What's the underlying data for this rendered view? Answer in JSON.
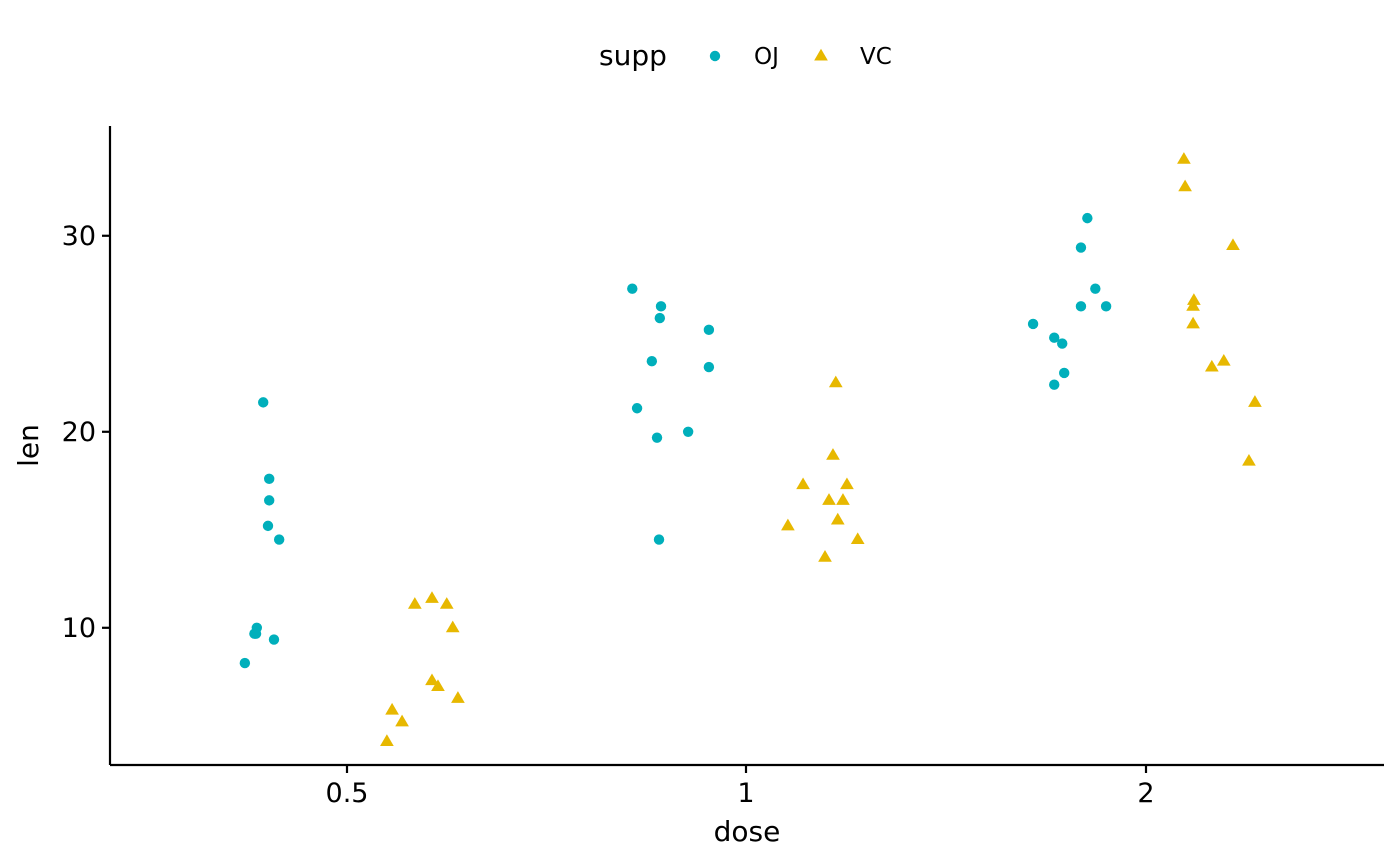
{
  "chart_data": {
    "type": "scatter",
    "xlabel": "dose",
    "ylabel": "len",
    "x_categories": [
      "0.5",
      "1",
      "2"
    ],
    "y_ticks": [
      10,
      20,
      30
    ],
    "ylim": [
      3.0,
      35.6
    ],
    "grid": false,
    "legend": {
      "title": "supp",
      "position": "top",
      "entries": [
        {
          "name": "OJ",
          "shape": "circle",
          "color": "#00AFBB"
        },
        {
          "name": "VC",
          "shape": "triangle",
          "color": "#E7B800"
        }
      ]
    },
    "series": [
      {
        "name": "OJ",
        "shape": "circle",
        "color": "#00AFBB",
        "points": [
          {
            "x": "0.5",
            "jitter": -0.256,
            "y": 8.2
          },
          {
            "x": "0.5",
            "jitter": -0.232,
            "y": 9.7
          },
          {
            "x": "0.5",
            "jitter": -0.228,
            "y": 9.7
          },
          {
            "x": "0.5",
            "jitter": -0.226,
            "y": 10.0
          },
          {
            "x": "0.5",
            "jitter": -0.21,
            "y": 21.5
          },
          {
            "x": "0.5",
            "jitter": -0.195,
            "y": 17.6
          },
          {
            "x": "0.5",
            "jitter": -0.195,
            "y": 16.5
          },
          {
            "x": "0.5",
            "jitter": -0.198,
            "y": 15.2
          },
          {
            "x": "0.5",
            "jitter": -0.17,
            "y": 14.5
          },
          {
            "x": "0.5",
            "jitter": -0.183,
            "y": 9.4
          },
          {
            "x": "1",
            "jitter": -0.285,
            "y": 27.3
          },
          {
            "x": "1",
            "jitter": -0.213,
            "y": 26.4
          },
          {
            "x": "1",
            "jitter": -0.216,
            "y": 25.8
          },
          {
            "x": "1",
            "jitter": -0.093,
            "y": 25.2
          },
          {
            "x": "1",
            "jitter": -0.236,
            "y": 23.6
          },
          {
            "x": "1",
            "jitter": -0.093,
            "y": 23.3
          },
          {
            "x": "1",
            "jitter": -0.273,
            "y": 21.2
          },
          {
            "x": "1",
            "jitter": -0.223,
            "y": 19.7
          },
          {
            "x": "1",
            "jitter": -0.145,
            "y": 20.0
          },
          {
            "x": "1",
            "jitter": -0.218,
            "y": 14.5
          },
          {
            "x": "2",
            "jitter": -0.147,
            "y": 30.9
          },
          {
            "x": "2",
            "jitter": -0.163,
            "y": 29.4
          },
          {
            "x": "2",
            "jitter": -0.127,
            "y": 27.3
          },
          {
            "x": "2",
            "jitter": -0.163,
            "y": 26.4
          },
          {
            "x": "2",
            "jitter": -0.1,
            "y": 26.4
          },
          {
            "x": "2",
            "jitter": -0.283,
            "y": 25.5
          },
          {
            "x": "2",
            "jitter": -0.23,
            "y": 24.8
          },
          {
            "x": "2",
            "jitter": -0.21,
            "y": 24.5
          },
          {
            "x": "2",
            "jitter": -0.205,
            "y": 23.0
          },
          {
            "x": "2",
            "jitter": -0.23,
            "y": 22.4
          }
        ]
      },
      {
        "name": "VC",
        "shape": "triangle",
        "color": "#E7B800",
        "points": [
          {
            "x": "0.5",
            "jitter": 0.1,
            "y": 4.2
          },
          {
            "x": "0.5",
            "jitter": 0.113,
            "y": 5.8
          },
          {
            "x": "0.5",
            "jitter": 0.138,
            "y": 5.2
          },
          {
            "x": "0.5",
            "jitter": 0.213,
            "y": 7.3
          },
          {
            "x": "0.5",
            "jitter": 0.228,
            "y": 7.0
          },
          {
            "x": "0.5",
            "jitter": 0.278,
            "y": 6.4
          },
          {
            "x": "0.5",
            "jitter": 0.17,
            "y": 11.2
          },
          {
            "x": "0.5",
            "jitter": 0.213,
            "y": 11.5
          },
          {
            "x": "0.5",
            "jitter": 0.25,
            "y": 11.2
          },
          {
            "x": "0.5",
            "jitter": 0.265,
            "y": 10.0
          },
          {
            "x": "1",
            "jitter": 0.225,
            "y": 22.5
          },
          {
            "x": "1",
            "jitter": 0.218,
            "y": 18.8
          },
          {
            "x": "1",
            "jitter": 0.143,
            "y": 17.3
          },
          {
            "x": "1",
            "jitter": 0.253,
            "y": 17.3
          },
          {
            "x": "1",
            "jitter": 0.208,
            "y": 16.5
          },
          {
            "x": "1",
            "jitter": 0.243,
            "y": 16.5
          },
          {
            "x": "1",
            "jitter": 0.105,
            "y": 15.2
          },
          {
            "x": "1",
            "jitter": 0.23,
            "y": 15.5
          },
          {
            "x": "1",
            "jitter": 0.28,
            "y": 14.5
          },
          {
            "x": "1",
            "jitter": 0.198,
            "y": 13.6
          },
          {
            "x": "2",
            "jitter": 0.095,
            "y": 33.9
          },
          {
            "x": "2",
            "jitter": 0.098,
            "y": 32.5
          },
          {
            "x": "2",
            "jitter": 0.218,
            "y": 29.5
          },
          {
            "x": "2",
            "jitter": 0.12,
            "y": 26.7
          },
          {
            "x": "2",
            "jitter": 0.118,
            "y": 26.4
          },
          {
            "x": "2",
            "jitter": 0.118,
            "y": 25.5
          },
          {
            "x": "2",
            "jitter": 0.195,
            "y": 23.6
          },
          {
            "x": "2",
            "jitter": 0.165,
            "y": 23.3
          },
          {
            "x": "2",
            "jitter": 0.273,
            "y": 21.5
          },
          {
            "x": "2",
            "jitter": 0.258,
            "y": 18.5
          }
        ]
      }
    ]
  }
}
